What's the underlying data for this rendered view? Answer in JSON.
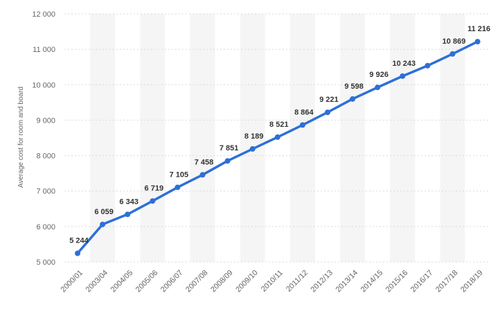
{
  "chart_data": {
    "type": "line",
    "title": "",
    "xlabel": "",
    "ylabel": "Average cost for room and board",
    "categories": [
      "2000/01",
      "2003/04",
      "2004/05",
      "2005/06",
      "2006/07",
      "2007/08",
      "2008/09",
      "2009/10",
      "2010/11",
      "2011/12",
      "2012/13",
      "2013/14",
      "2014/15",
      "2015/16",
      "2016/17",
      "2017/18",
      "2018/19"
    ],
    "series": [
      {
        "values": [
          5244,
          6059,
          6343,
          6719,
          7105,
          7458,
          7851,
          8189,
          8521,
          8864,
          9221,
          9598,
          9926,
          10243,
          10538,
          10869,
          11216
        ],
        "labels": [
          "5 244",
          "6 059",
          "6 343",
          "6 719",
          "7 105",
          "7 458",
          "7 851",
          "8 189",
          "8 521",
          "8 864",
          "9 221",
          "9 598",
          "9 926",
          "10 243",
          "",
          "10 869",
          "11 216"
        ],
        "color": "#2e6fd6"
      }
    ],
    "ylim": [
      5000,
      12000
    ],
    "yticks": [
      5000,
      6000,
      7000,
      8000,
      9000,
      10000,
      11000,
      12000
    ],
    "ytick_labels": [
      "5 000",
      "6 000",
      "7 000",
      "8 000",
      "9 000",
      "10 000",
      "11 000",
      "12 000"
    ],
    "grid": true,
    "legend": "none",
    "colors": {
      "line": "#2e6fd6",
      "band": "#f5f5f5",
      "grid": "#d9d9d9",
      "tick_text": "#666666",
      "label_text": "#333333"
    }
  }
}
